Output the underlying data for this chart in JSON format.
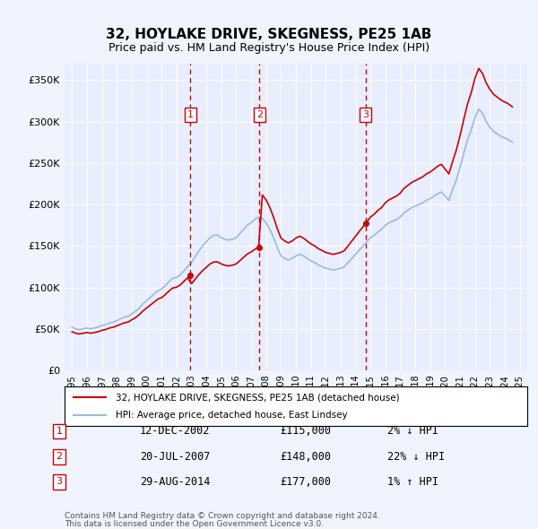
{
  "title": "32, HOYLAKE DRIVE, SKEGNESS, PE25 1AB",
  "subtitle": "Price paid vs. HM Land Registry's House Price Index (HPI)",
  "ylabel_ticks": [
    "£0",
    "£50K",
    "£100K",
    "£150K",
    "£200K",
    "£250K",
    "£300K",
    "£350K"
  ],
  "ytick_values": [
    0,
    50000,
    100000,
    150000,
    200000,
    250000,
    300000,
    350000
  ],
  "ylim": [
    0,
    370000
  ],
  "xlim_start": 1994.5,
  "xlim_end": 2025.5,
  "background_color": "#f0f4ff",
  "plot_bg_color": "#e8eeff",
  "grid_color": "#ffffff",
  "red_line_color": "#cc0000",
  "blue_line_color": "#aabbdd",
  "hpi_x": [
    1995.0,
    1995.25,
    1995.5,
    1995.75,
    1996.0,
    1996.25,
    1996.5,
    1996.75,
    1997.0,
    1997.25,
    1997.5,
    1997.75,
    1998.0,
    1998.25,
    1998.5,
    1998.75,
    1999.0,
    1999.25,
    1999.5,
    1999.75,
    2000.0,
    2000.25,
    2000.5,
    2000.75,
    2001.0,
    2001.25,
    2001.5,
    2001.75,
    2002.0,
    2002.25,
    2002.5,
    2002.75,
    2003.0,
    2003.25,
    2003.5,
    2003.75,
    2004.0,
    2004.25,
    2004.5,
    2004.75,
    2005.0,
    2005.25,
    2005.5,
    2005.75,
    2006.0,
    2006.25,
    2006.5,
    2006.75,
    2007.0,
    2007.25,
    2007.5,
    2007.75,
    2008.0,
    2008.25,
    2008.5,
    2008.75,
    2009.0,
    2009.25,
    2009.5,
    2009.75,
    2010.0,
    2010.25,
    2010.5,
    2010.75,
    2011.0,
    2011.25,
    2011.5,
    2011.75,
    2012.0,
    2012.25,
    2012.5,
    2012.75,
    2013.0,
    2013.25,
    2013.5,
    2013.75,
    2014.0,
    2014.25,
    2014.5,
    2014.75,
    2015.0,
    2015.25,
    2015.5,
    2015.75,
    2016.0,
    2016.25,
    2016.5,
    2016.75,
    2017.0,
    2017.25,
    2017.5,
    2017.75,
    2018.0,
    2018.25,
    2018.5,
    2018.75,
    2019.0,
    2019.25,
    2019.5,
    2019.75,
    2020.0,
    2020.25,
    2020.5,
    2020.75,
    2021.0,
    2021.25,
    2021.5,
    2021.75,
    2022.0,
    2022.25,
    2022.5,
    2022.75,
    2023.0,
    2023.25,
    2023.5,
    2023.75,
    2024.0,
    2024.25,
    2024.5
  ],
  "hpi_y": [
    52000,
    50000,
    49000,
    50000,
    51000,
    50000,
    51000,
    52000,
    54000,
    55000,
    57000,
    58000,
    60000,
    62000,
    64000,
    65000,
    68000,
    71000,
    75000,
    80000,
    84000,
    88000,
    92000,
    96000,
    98000,
    102000,
    107000,
    111000,
    112000,
    115000,
    120000,
    125000,
    130000,
    137000,
    144000,
    150000,
    155000,
    160000,
    163000,
    163000,
    160000,
    158000,
    157000,
    158000,
    160000,
    165000,
    170000,
    175000,
    178000,
    182000,
    185000,
    183000,
    178000,
    170000,
    160000,
    148000,
    138000,
    135000,
    133000,
    135000,
    138000,
    140000,
    138000,
    135000,
    132000,
    130000,
    127000,
    125000,
    123000,
    122000,
    121000,
    122000,
    123000,
    125000,
    130000,
    135000,
    140000,
    145000,
    150000,
    155000,
    160000,
    163000,
    167000,
    170000,
    175000,
    178000,
    180000,
    182000,
    185000,
    190000,
    193000,
    196000,
    198000,
    200000,
    202000,
    205000,
    207000,
    210000,
    213000,
    215000,
    210000,
    205000,
    218000,
    230000,
    245000,
    262000,
    278000,
    290000,
    305000,
    315000,
    310000,
    300000,
    293000,
    288000,
    285000,
    282000,
    280000,
    278000,
    275000
  ],
  "transactions": [
    {
      "year": 2002.93,
      "price": 115000,
      "label": "1",
      "date": "12-DEC-2002",
      "pct": "2%",
      "dir": "↓"
    },
    {
      "year": 2007.55,
      "price": 148000,
      "label": "2",
      "date": "20-JUL-2007",
      "pct": "22%",
      "dir": "↓"
    },
    {
      "year": 2014.66,
      "price": 177000,
      "label": "3",
      "date": "29-AUG-2014",
      "pct": "1%",
      "dir": "↑"
    }
  ],
  "legend_line1": "32, HOYLAKE DRIVE, SKEGNESS, PE25 1AB (detached house)",
  "legend_line2": "HPI: Average price, detached house, East Lindsey",
  "footer1": "Contains HM Land Registry data © Crown copyright and database right 2024.",
  "footer2": "This data is licensed under the Open Government Licence v3.0.",
  "xtick_years": [
    1995,
    1996,
    1997,
    1998,
    1999,
    2000,
    2001,
    2002,
    2003,
    2004,
    2005,
    2006,
    2007,
    2008,
    2009,
    2010,
    2011,
    2012,
    2013,
    2014,
    2015,
    2016,
    2017,
    2018,
    2019,
    2020,
    2021,
    2022,
    2023,
    2024,
    2025
  ]
}
